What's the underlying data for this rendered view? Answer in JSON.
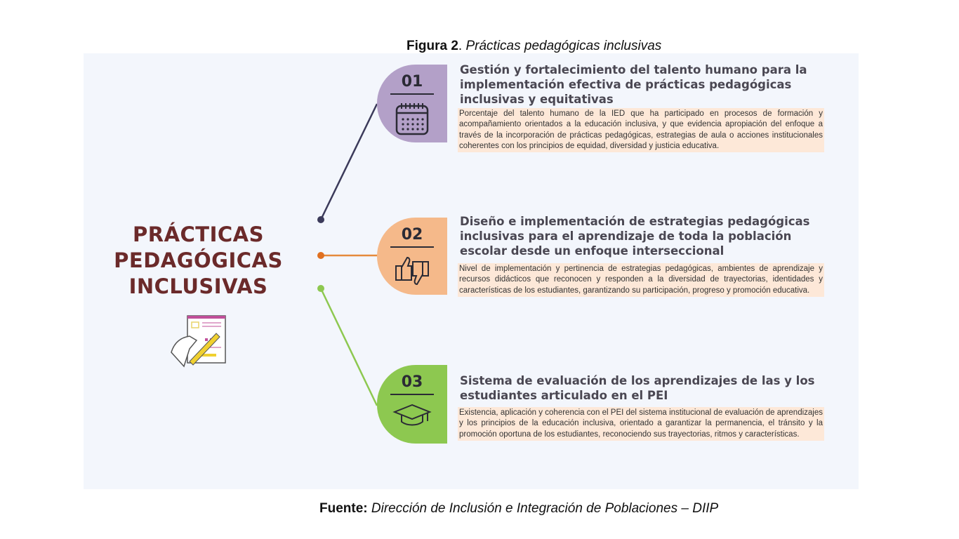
{
  "figure": {
    "label": "Figura 2",
    "title": "Prácticas pedagógicas inclusivas"
  },
  "main_title": [
    "PRÁCTICAS",
    "PEDAGÓGICAS",
    "INCLUSIVAS"
  ],
  "colors": {
    "item1": "#b3a0c8",
    "item2": "#f5b98a",
    "item3": "#8dc850",
    "title": "#6b2a2a",
    "desc_bg": "#fde8d8"
  },
  "items": [
    {
      "number": "01",
      "icon": "calendar-icon",
      "heading": "Gestión y fortalecimiento del talento humano para la implementación efectiva de prácticas pedagógicas inclusivas y equitativas",
      "description": "Porcentaje del talento humano de la IED que ha participado en procesos de formación y acompañamiento orientados a la educación inclusiva, y que evidencia apropiación del enfoque a través de la incorporación de prácticas pedagógicas, estrategias de aula o acciones institucionales coherentes con los principios de equidad, diversidad y justicia educativa."
    },
    {
      "number": "02",
      "icon": "thumbs-up-down-icon",
      "heading": "Diseño e implementación de estrategias pedagógicas inclusivas para el aprendizaje de toda la población escolar desde un enfoque interseccional",
      "description": "Nivel de implementación y pertinencia de estrategias pedagógicas, ambientes de aprendizaje y recursos didácticos que reconocen y responden a la diversidad de trayectorias, identidades y características de los estudiantes, garantizando su participación, progreso y promoción educativa."
    },
    {
      "number": "03",
      "icon": "graduation-cap-icon",
      "heading": "Sistema de evaluación de los aprendizajes de las y los estudiantes articulado en el PEI",
      "description": "Existencia, aplicación y coherencia con el PEI del sistema institucional de evaluación de aprendizajes y los principios de la educación inclusiva, orientado a garantizar la permanencia, el tránsito y la promoción oportuna de los estudiantes, reconociendo sus trayectorias, ritmos y características."
    }
  ],
  "source": {
    "label": "Fuente:",
    "text": "Dirección de Inclusión e Integración de Poblaciones – DIIP"
  }
}
